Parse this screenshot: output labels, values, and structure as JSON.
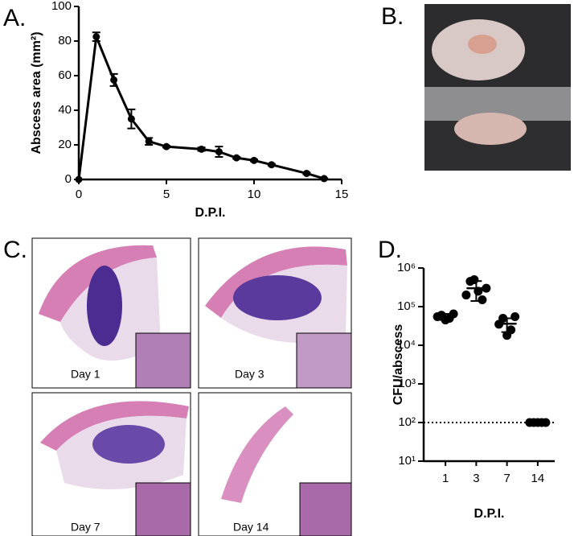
{
  "panels": {
    "labels": [
      "A.",
      "B.",
      "C.",
      "D."
    ]
  },
  "histology": {
    "captions": [
      "Day 1",
      "Day 3",
      "Day 7",
      "Day 14"
    ]
  },
  "chart_data": [
    {
      "type": "line",
      "xlabel": "D.P.I.",
      "ylabel": "Abscess area (mm²)",
      "x": [
        0,
        1,
        2,
        3,
        4,
        5,
        7,
        8,
        9,
        10,
        11,
        13,
        14
      ],
      "values": [
        0,
        82.5,
        57.5,
        35,
        22,
        19,
        17.5,
        16,
        12.5,
        11,
        8.5,
        3.5,
        0.5
      ],
      "errors": [
        0,
        2.5,
        3.5,
        5.5,
        2,
        0.5,
        1,
        3,
        0.5,
        0.5,
        0.5,
        0.5,
        0.2
      ],
      "color": "#000000",
      "xlim": [
        0,
        15
      ],
      "xticks": [
        0,
        5,
        10,
        15
      ],
      "ylim": [
        0,
        100
      ],
      "yticks": [
        0,
        20,
        40,
        60,
        80,
        100
      ]
    },
    {
      "type": "scatter",
      "xlabel": "D.P.I.",
      "ylabel": "CFU/abscess",
      "log_scale": true,
      "categories": [
        "1",
        "3",
        "7",
        "14"
      ],
      "points": [
        [
          55000,
          60000,
          45000,
          50000,
          65000
        ],
        [
          200000,
          450000,
          500000,
          250000,
          150000,
          300000
        ],
        [
          35000,
          50000,
          18000,
          25000,
          55000
        ],
        [
          100,
          100,
          100,
          100,
          100
        ]
      ],
      "means": [
        55000,
        300000,
        36000,
        100
      ],
      "error_range": [
        [
          45000,
          65000
        ],
        [
          140000,
          460000
        ],
        [
          22000,
          50000
        ],
        [
          100,
          100
        ]
      ],
      "detection_limit": 100,
      "color": "#000000",
      "ylim": [
        10,
        1000000
      ],
      "yticks": [
        {
          "value": 10,
          "label": "10¹"
        },
        {
          "value": 100,
          "label": "10²"
        },
        {
          "value": 1000,
          "label": "10³"
        },
        {
          "value": 10000,
          "label": "10⁴"
        },
        {
          "value": 100000,
          "label": "10⁵"
        },
        {
          "value": 1000000,
          "label": "10⁶"
        }
      ]
    }
  ]
}
